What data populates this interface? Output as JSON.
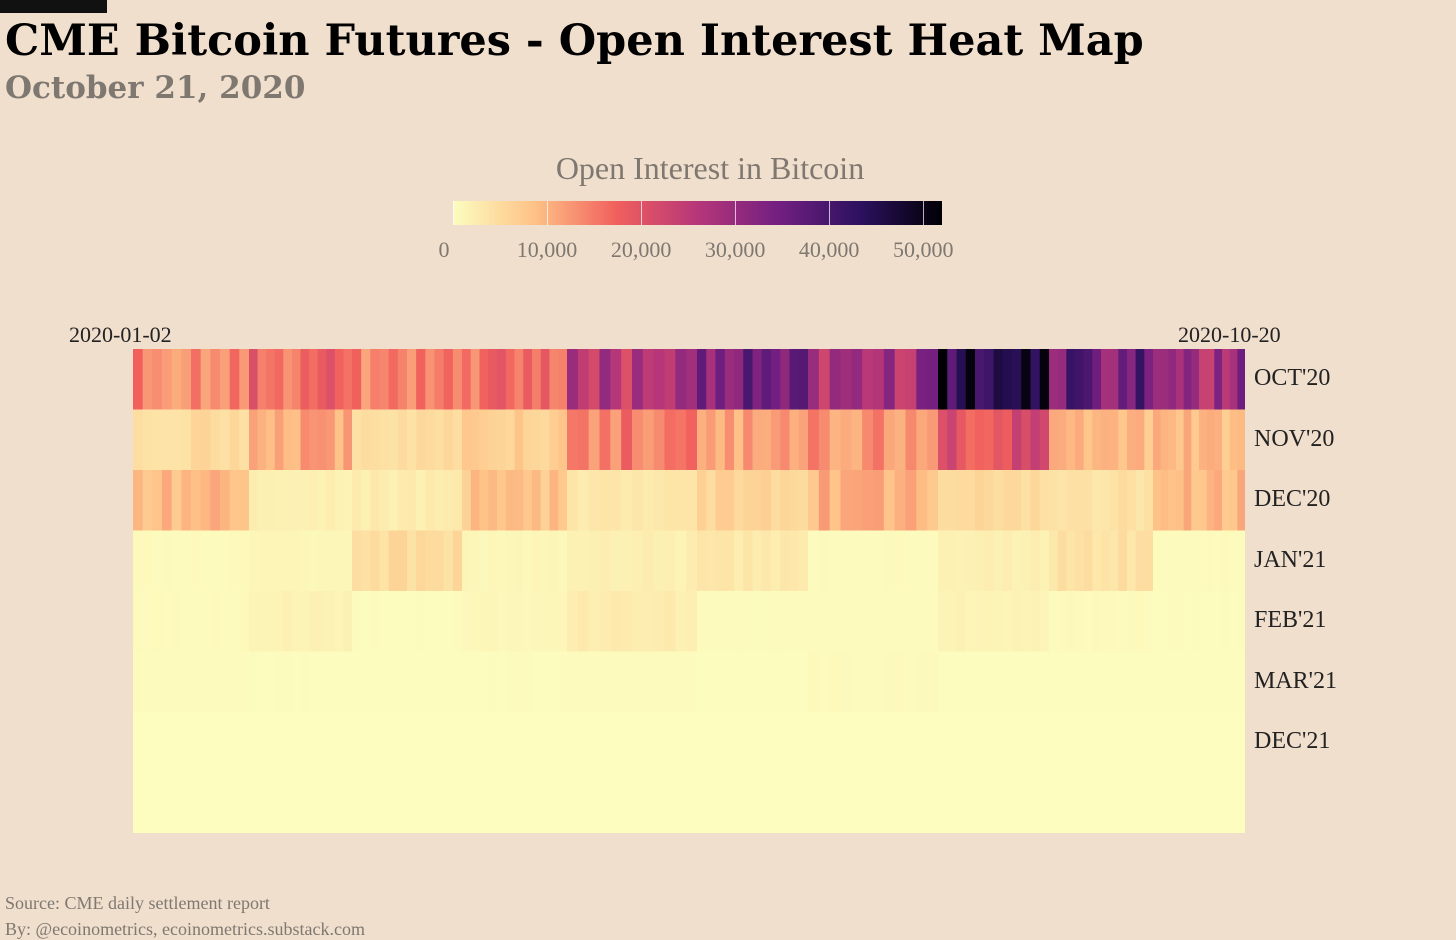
{
  "header": {
    "title": "CME Bitcoin Futures - Open Interest Heat Map",
    "subtitle": "October 21, 2020"
  },
  "legend": {
    "title": "Open Interest in Bitcoin",
    "ticks": [
      "0",
      "10,000",
      "20,000",
      "30,000",
      "40,000",
      "50,000"
    ],
    "colors": [
      "#fcfdbf",
      "#fec287",
      "#f1605d",
      "#b63679",
      "#721f81",
      "#2c115f",
      "#000004"
    ]
  },
  "footer": {
    "source": "Source: CME daily settlement report",
    "by": "By: @ecoinometrics, ecoinometrics.substack.com"
  },
  "chart_data": {
    "type": "heatmap",
    "title": "CME Bitcoin Futures - Open Interest Heat Map",
    "subtitle": "October 21, 2020",
    "legend_title": "Open Interest in Bitcoin",
    "x_start": "2020-01-02",
    "x_end": "2020-10-20",
    "rows": [
      "OCT'20",
      "NOV'20",
      "DEC'20",
      "JAN'21",
      "FEB'21",
      "MAR'21",
      "DEC'21"
    ],
    "color_range": [
      0,
      52000
    ],
    "month_segments": [
      "2020-01",
      "2020-02",
      "2020-03",
      "2020-04",
      "2020-05",
      "2020-06",
      "2020-07",
      "2020-08",
      "2020-09",
      "2020-10"
    ],
    "approx_values": {
      "OCT'20": [
        14000,
        17000,
        14000,
        16000,
        25000,
        36000,
        28000,
        45000,
        34000,
        28000
      ],
      "NOV'20": [
        5000,
        11000,
        5000,
        7000,
        15000,
        11000,
        13000,
        21000,
        9000,
        9000
      ],
      "DEC'20": [
        9000,
        2000,
        2500,
        8000,
        3000,
        6000,
        10000,
        5000,
        4000,
        9000
      ],
      "JAN'21": [
        500,
        1000,
        5000,
        1000,
        2000,
        3000,
        500,
        2000,
        4000,
        500
      ],
      "FEB'21": [
        500,
        1500,
        200,
        1000,
        2500,
        300,
        400,
        1500,
        600,
        200
      ],
      "MAR'21": [
        300,
        200,
        100,
        200,
        300,
        100,
        500,
        100,
        100,
        100
      ],
      "DEC'21": [
        0,
        0,
        0,
        0,
        0,
        0,
        0,
        0,
        0,
        0
      ]
    },
    "legend": "top-center"
  }
}
